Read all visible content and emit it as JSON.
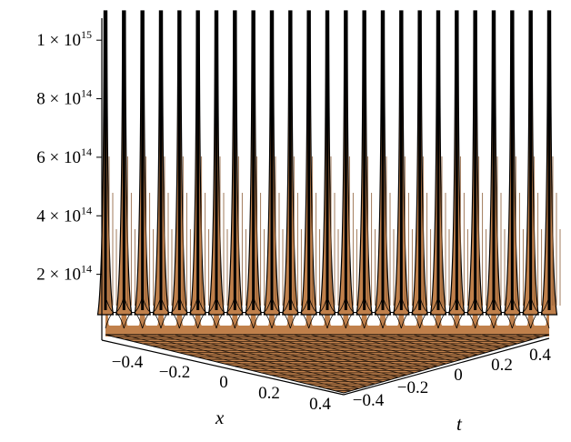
{
  "chart_data": {
    "type": "surface3d",
    "title": "",
    "xlabel": "x",
    "ylabel": "t",
    "zlabel": "",
    "x_ticks": [
      "−0.4",
      "−0.2",
      "0",
      "0.2",
      "0.4"
    ],
    "t_ticks": [
      "−0.4",
      "−0.2",
      "0",
      "0.2",
      "0.4"
    ],
    "z_ticks": [
      {
        "value": 200000000000000,
        "mantissa": "2",
        "exponent": "14"
      },
      {
        "value": 400000000000000,
        "mantissa": "4",
        "exponent": "14"
      },
      {
        "value": 600000000000000,
        "mantissa": "6",
        "exponent": "14"
      },
      {
        "value": 800000000000000,
        "mantissa": "8",
        "exponent": "14"
      },
      {
        "value": 1000000000000000,
        "mantissa": "1",
        "exponent": "15"
      }
    ],
    "xlim": [
      -0.5,
      0.5
    ],
    "tlim": [
      -0.5,
      0.5
    ],
    "zlim": [
      0,
      1100000000000000
    ],
    "peak_count": 24,
    "surface_color": "#c0804b",
    "edge_color": "#000000",
    "times_sign": "×",
    "base": "10"
  }
}
